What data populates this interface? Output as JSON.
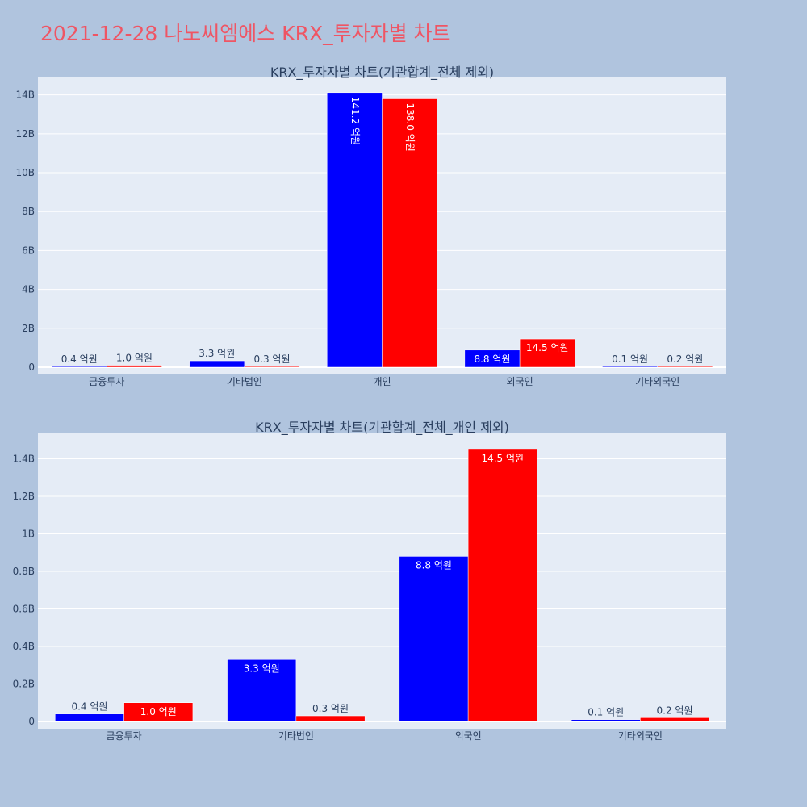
{
  "page": {
    "title": "2021-12-28 나노씨엠에스 KRX_투자자별 차트",
    "background_color": "#b0c4de",
    "plot_background_color": "#e5ecf6",
    "title_color": "#ef5564"
  },
  "chart_data": [
    {
      "type": "bar",
      "title": "KRX_투자자별 차트(기관합계_전체 제외)",
      "categories": [
        "금융투자",
        "기타법인",
        "개인",
        "외국인",
        "기타외국인"
      ],
      "series": [
        {
          "color": "#0000ff",
          "values": [
            40000000,
            330000000,
            14120000000,
            880000000,
            10000000
          ],
          "labels": [
            "0.4 억원",
            "3.3 억원",
            "141.2 억원",
            "8.8 억원",
            "0.1 억원"
          ]
        },
        {
          "color": "#ff0000",
          "values": [
            100000000,
            30000000,
            13800000000,
            1450000000,
            20000000
          ],
          "labels": [
            "1.0 억원",
            "0.3 억원",
            "138.0 억원",
            "14.5 억원",
            "0.2 억원"
          ]
        }
      ],
      "ylim": [
        0,
        14900000000
      ],
      "yticks": [
        0,
        2000000000,
        4000000000,
        6000000000,
        8000000000,
        10000000000,
        12000000000,
        14000000000
      ],
      "ytick_labels": [
        "0",
        "2B",
        "4B",
        "6B",
        "8B",
        "10B",
        "12B",
        "14B"
      ],
      "grid": true,
      "xlabel": "",
      "ylabel": ""
    },
    {
      "type": "bar",
      "title": "KRX_투자자별 차트(기관합계_전체_개인 제외)",
      "categories": [
        "금융투자",
        "기타법인",
        "외국인",
        "기타외국인"
      ],
      "series": [
        {
          "color": "#0000ff",
          "values": [
            40000000,
            330000000,
            880000000,
            10000000
          ],
          "labels": [
            "0.4 억원",
            "3.3 억원",
            "8.8 억원",
            "0.1 억원"
          ]
        },
        {
          "color": "#ff0000",
          "values": [
            100000000,
            30000000,
            1450000000,
            20000000
          ],
          "labels": [
            "1.0 억원",
            "0.3 억원",
            "14.5 억원",
            "0.2 억원"
          ]
        }
      ],
      "ylim": [
        0,
        1540000000
      ],
      "yticks": [
        0,
        200000000,
        400000000,
        600000000,
        800000000,
        1000000000,
        1200000000,
        1400000000
      ],
      "ytick_labels": [
        "0",
        "0.2B",
        "0.4B",
        "0.6B",
        "0.8B",
        "1B",
        "1.2B",
        "1.4B"
      ],
      "grid": true,
      "xlabel": "",
      "ylabel": ""
    }
  ]
}
